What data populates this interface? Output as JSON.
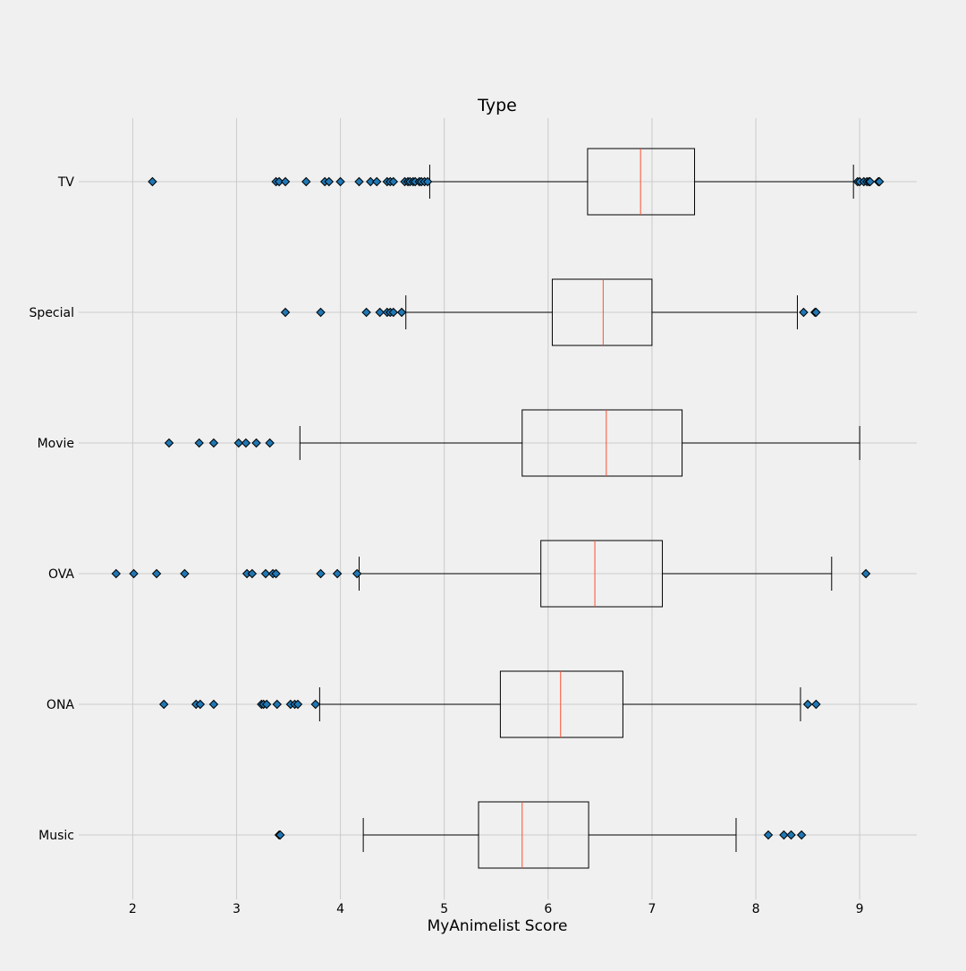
{
  "chart_data": {
    "type": "box",
    "orientation": "horizontal",
    "title": "Type",
    "xlabel": "MyAnimelist Score",
    "ylabel": "",
    "xlim": [
      1.48,
      9.55
    ],
    "xticks": [
      2,
      3,
      4,
      5,
      6,
      7,
      8,
      9
    ],
    "grid": true,
    "colors": {
      "background": "#f0f0f0",
      "grid": "#cbcbcb",
      "box": "#000000",
      "median": "#fc4f30",
      "flier_fill": "#1f77b4",
      "flier_edge": "#000000"
    },
    "categories": [
      "TV",
      "Special",
      "Movie",
      "OVA",
      "ONA",
      "Music"
    ],
    "boxes": [
      {
        "label": "TV",
        "whisker_low": 4.86,
        "q1": 6.38,
        "median": 6.89,
        "q3": 7.41,
        "whisker_high": 8.94,
        "fliers": [
          2.19,
          3.38,
          3.41,
          3.47,
          3.67,
          3.85,
          3.89,
          4.0,
          4.18,
          4.29,
          4.35,
          4.45,
          4.48,
          4.51,
          4.62,
          4.65,
          4.67,
          4.7,
          4.72,
          4.76,
          4.78,
          4.81,
          4.84,
          8.98,
          9.0,
          9.04,
          9.07,
          9.09,
          9.1,
          9.18,
          9.19
        ]
      },
      {
        "label": "Special",
        "whisker_low": 4.63,
        "q1": 6.04,
        "median": 6.53,
        "q3": 7.0,
        "whisker_high": 8.4,
        "fliers": [
          3.47,
          3.81,
          4.25,
          4.38,
          4.45,
          4.48,
          4.51,
          4.59,
          8.46,
          8.57,
          8.58
        ]
      },
      {
        "label": "Movie",
        "whisker_low": 3.61,
        "q1": 5.75,
        "median": 6.56,
        "q3": 7.29,
        "whisker_high": 9.0,
        "fliers": [
          2.35,
          2.64,
          2.78,
          3.02,
          3.09,
          3.19,
          3.32
        ]
      },
      {
        "label": "OVA",
        "whisker_low": 4.18,
        "q1": 5.93,
        "median": 6.45,
        "q3": 7.1,
        "whisker_high": 8.73,
        "fliers": [
          1.84,
          2.01,
          2.23,
          2.5,
          3.1,
          3.15,
          3.28,
          3.35,
          3.38,
          3.81,
          3.97,
          4.16,
          9.06
        ]
      },
      {
        "label": "ONA",
        "whisker_low": 3.8,
        "q1": 5.54,
        "median": 6.12,
        "q3": 6.72,
        "whisker_high": 8.43,
        "fliers": [
          2.3,
          2.61,
          2.65,
          2.78,
          3.24,
          3.26,
          3.29,
          3.39,
          3.52,
          3.56,
          3.59,
          3.76,
          8.5,
          8.58
        ]
      },
      {
        "label": "Music",
        "whisker_low": 4.22,
        "q1": 5.33,
        "median": 5.75,
        "q3": 6.39,
        "whisker_high": 7.81,
        "fliers": [
          3.41,
          3.42,
          8.12,
          8.27,
          8.34,
          8.44
        ]
      }
    ]
  }
}
